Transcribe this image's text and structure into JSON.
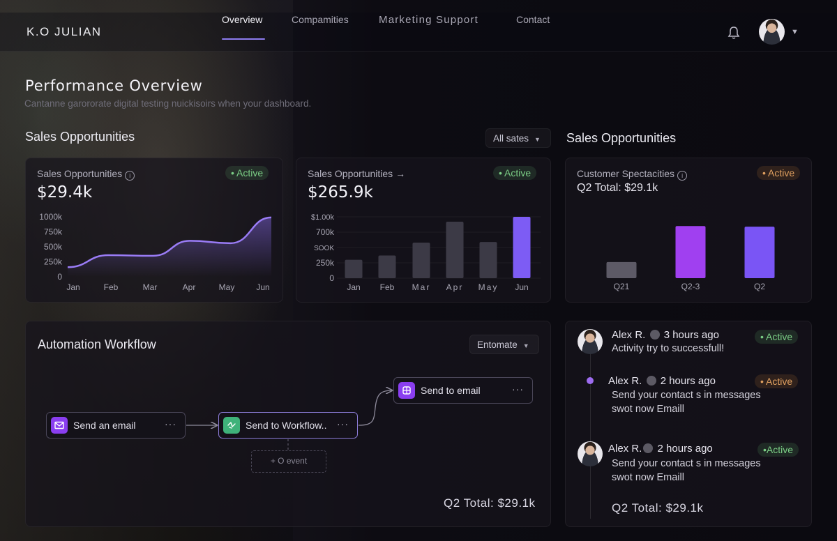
{
  "header": {
    "brand": "K.O JULIAN",
    "nav": [
      {
        "label": "Overview",
        "active": true
      },
      {
        "label": "Compamities"
      },
      {
        "label": "Marketing Support"
      },
      {
        "label": "Contact"
      }
    ]
  },
  "page": {
    "title": "Performance Overview",
    "subtitle": "Cantanne garororate digital testing nuickisoirs when your dashboard."
  },
  "sales_section": {
    "title": "Sales Opportunities",
    "filter": "All sates"
  },
  "right_section": {
    "title": "Sales Opportunities"
  },
  "cards": {
    "line": {
      "title": "Sales Opportunities",
      "value": "$29.4k",
      "badge": "• Active"
    },
    "bar": {
      "title": "Sales Opportunities →",
      "value": "$265.9k",
      "badge": "• Active"
    },
    "customer": {
      "title": "Customer Spectacities",
      "total": "Q2 Total: $29.1k",
      "badge": "• Active"
    }
  },
  "chart_data": [
    {
      "type": "line",
      "title": "Sales Opportunities",
      "categories": [
        "Jan",
        "Feb",
        "Mar",
        "Apr",
        "May",
        "Jun"
      ],
      "x": [
        0,
        0.2,
        0.42,
        0.6,
        0.8,
        1
      ],
      "values": [
        160,
        360,
        350,
        600,
        560,
        990
      ],
      "y_ticks": [
        "1000k",
        "750k",
        "500k",
        "250k",
        "0"
      ],
      "ylim": [
        0,
        1000
      ]
    },
    {
      "type": "bar",
      "title": "Sales Opportunities",
      "categories": [
        "Jan",
        "Feb",
        "Mar",
        "Apr",
        "May",
        "Jun"
      ],
      "values": [
        300,
        370,
        580,
        920,
        590,
        1000
      ],
      "highlight": [
        false,
        false,
        false,
        false,
        false,
        true
      ],
      "y_ticks": [
        "$1.00k",
        "700k",
        "SOOK",
        "250k",
        "0"
      ],
      "ylim": [
        0,
        1000
      ]
    },
    {
      "type": "bar",
      "title": "Customer Spectacities",
      "categories": [
        "Q21",
        "Q2-3",
        "Q2"
      ],
      "values": [
        0.3,
        0.97,
        0.96
      ],
      "colors": [
        "#5d5a66",
        "#a040f0",
        "#7a55f5"
      ]
    }
  ],
  "workflow": {
    "title": "Automation Workflow",
    "filter": "Entomate",
    "nodes": {
      "email": "Send an email",
      "workflow": "Send to Workflow..",
      "to_email": "Send to email",
      "more": "···"
    },
    "add_event": "+ O event",
    "total": "Q2 Total: $29.1k"
  },
  "feed": {
    "items": [
      {
        "name": "Alex R.",
        "time": "3 hours ago",
        "text": "Activity try to successfull!",
        "badge": "• Active"
      },
      {
        "name": "Alex R.",
        "time": "2 hours ago",
        "text": "Send your contact s in messages swot now Emaill",
        "badge": "• Active"
      },
      {
        "name": "Alex R.",
        "time": "2 hours ago",
        "text": "Send your contact s in messages swot now Emaill",
        "badge": "•Active"
      }
    ],
    "total": "Q2 Total: $29.1k"
  },
  "colors": {
    "accent": "#8d7cf0",
    "purple": "#a040f0",
    "violet": "#7a55f5",
    "active_green": "#7ccf86",
    "active_orange": "#e0a060"
  }
}
